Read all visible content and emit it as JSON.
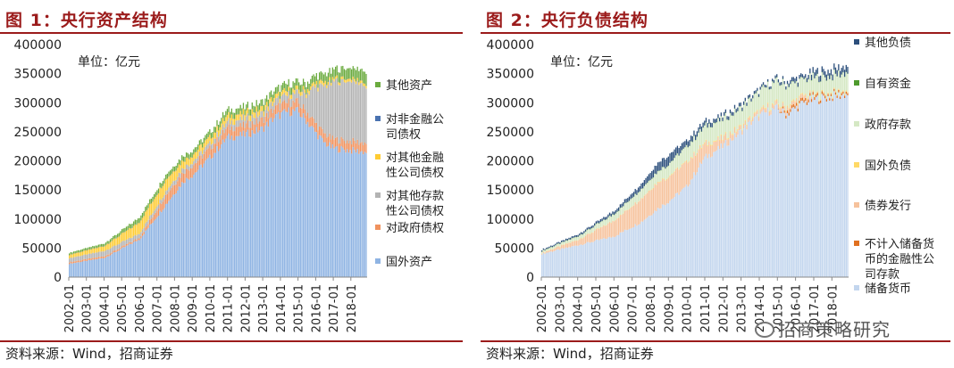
{
  "figures": [
    {
      "id": "fig1",
      "title": "图 1：央行资产结构",
      "source": "资料来源：Wind，招商证券"
    },
    {
      "id": "fig2",
      "title": "图 2：央行负债结构",
      "source": "资料来源：Wind，招商证券"
    }
  ],
  "watermark": "招商策略研究",
  "chart_data": [
    {
      "type": "area",
      "subtype": "stacked-bar-monthly",
      "title": "央行资产结构",
      "unit_label": "单位：亿元",
      "xlabel": "",
      "ylabel": "",
      "ylim": [
        0,
        400000
      ],
      "yticks": [
        0,
        50000,
        100000,
        150000,
        200000,
        250000,
        300000,
        350000,
        400000
      ],
      "xticks": [
        "2002-01",
        "2003-01",
        "2004-01",
        "2005-01",
        "2006-01",
        "2007-01",
        "2008-01",
        "2009-01",
        "2010-01",
        "2011-01",
        "2012-01",
        "2013-01",
        "2014-01",
        "2015-01",
        "2016-01",
        "2017-01",
        "2018-01"
      ],
      "x_range_years": [
        2002,
        2018.92
      ],
      "grid": false,
      "legend_placement": "right",
      "x": [
        2002.0,
        2004.0,
        2006.0,
        2007.5,
        2008.5,
        2009.0,
        2010.0,
        2011.0,
        2012.0,
        2013.0,
        2013.7,
        2014.5,
        2015.0,
        2015.5,
        2016.0,
        2016.5,
        2017.0,
        2018.0,
        2018.9
      ],
      "series": [
        {
          "name": "国外资产",
          "color": "#8fb4e3",
          "values": [
            23000,
            33000,
            65000,
            125000,
            165000,
            175000,
            205000,
            240000,
            245000,
            255000,
            275000,
            285000,
            285000,
            270000,
            250000,
            232000,
            222000,
            218000,
            215000
          ]
        },
        {
          "name": "对政府债权",
          "color": "#f0925e",
          "values": [
            2800,
            3000,
            3000,
            16000,
            16000,
            16000,
            16000,
            16000,
            15500,
            15500,
            15500,
            15500,
            15500,
            15500,
            15500,
            15500,
            15500,
            15500,
            15500
          ]
        },
        {
          "name": "对其他存款性公司债权",
          "color": "#b3b3b3",
          "values": [
            7000,
            9000,
            7000,
            7000,
            8000,
            7000,
            8000,
            10000,
            12000,
            11000,
            12000,
            13000,
            15000,
            30000,
            62000,
            80000,
            97000,
            105000,
            98000
          ]
        },
        {
          "name": "对其他金融性公司债权",
          "color": "#ffcc33",
          "values": [
            6000,
            9000,
            20000,
            20000,
            13000,
            12000,
            11000,
            11000,
            10000,
            9000,
            8000,
            7500,
            7000,
            6500,
            6500,
            6500,
            5000,
            5000,
            5000
          ]
        },
        {
          "name": "对非金融公司债权",
          "color": "#4a72b0",
          "values": [
            70,
            70,
            70,
            70,
            70,
            70,
            70,
            70,
            70,
            70,
            70,
            70,
            70,
            70,
            70,
            70,
            70,
            70,
            70
          ]
        },
        {
          "name": "其他资产",
          "color": "#6bab3f",
          "values": [
            3000,
            4000,
            8000,
            8000,
            8000,
            8000,
            9000,
            10000,
            10000,
            11000,
            11000,
            12000,
            12000,
            12000,
            13000,
            14000,
            16000,
            18000,
            20000
          ]
        }
      ]
    },
    {
      "type": "area",
      "subtype": "stacked-bar-monthly",
      "title": "央行负债结构",
      "unit_label": "单位：亿元",
      "xlabel": "",
      "ylabel": "",
      "ylim": [
        0,
        400000
      ],
      "yticks": [
        0,
        50000,
        100000,
        150000,
        200000,
        250000,
        300000,
        350000,
        400000
      ],
      "xticks": [
        "2002-01",
        "2003-01",
        "2004-01",
        "2005-01",
        "2006-01",
        "2007-01",
        "2008-01",
        "2009-01",
        "2010-01",
        "2011-01",
        "2012-01",
        "2013-01",
        "2014-01",
        "2015-01",
        "2016-01",
        "2017-01",
        "2018-01"
      ],
      "x_range_years": [
        2002,
        2018.92
      ],
      "grid": false,
      "legend_placement": "right",
      "x": [
        2002.0,
        2004.0,
        2006.0,
        2007.5,
        2008.5,
        2009.0,
        2010.0,
        2011.0,
        2012.0,
        2013.0,
        2013.7,
        2014.5,
        2015.0,
        2015.5,
        2016.0,
        2016.5,
        2017.0,
        2018.0,
        2018.9
      ],
      "series": [
        {
          "name": "储备货币",
          "color": "#c3d6ee",
          "values": [
            40000,
            55000,
            70000,
            95000,
            120000,
            130000,
            155000,
            205000,
            225000,
            250000,
            270000,
            285000,
            290000,
            280000,
            290000,
            300000,
            305000,
            310000,
            315000
          ]
        },
        {
          "name": "不计入储备货币的金融性公司存款",
          "color": "#e07020",
          "values": [
            0,
            0,
            0,
            0,
            0,
            0,
            0,
            0,
            0,
            0,
            0,
            0,
            0,
            5000,
            5000,
            5000,
            5000,
            4000,
            4000
          ]
        },
        {
          "name": "债券发行",
          "color": "#f6c29c",
          "values": [
            1500,
            9000,
            27000,
            40000,
            45000,
            42000,
            42000,
            23000,
            13000,
            7000,
            6000,
            6500,
            6500,
            6500,
            6500,
            6500,
            1000,
            500,
            500
          ]
        },
        {
          "name": "国外负债",
          "color": "#ffd966",
          "values": [
            500,
            500,
            500,
            500,
            1000,
            1000,
            1000,
            1500,
            1500,
            1500,
            1500,
            1500,
            1500,
            1500,
            1500,
            1500,
            1500,
            1500,
            1500
          ]
        },
        {
          "name": "政府存款",
          "color": "#d5e8c4",
          "values": [
            3000,
            6000,
            11000,
            16000,
            19000,
            21000,
            26000,
            29000,
            32000,
            32000,
            32000,
            36000,
            38000,
            38000,
            30000,
            27000,
            30000,
            30000,
            31000
          ]
        },
        {
          "name": "自有资金",
          "color": "#4e9a2d",
          "values": [
            200,
            200,
            200,
            200,
            200,
            200,
            200,
            200,
            200,
            200,
            200,
            200,
            200,
            200,
            200,
            200,
            200,
            200,
            200
          ]
        },
        {
          "name": "其他负债",
          "color": "#2c4f7c",
          "values": [
            2000,
            3000,
            5000,
            9000,
            15000,
            16000,
            10000,
            8000,
            6000,
            6000,
            5000,
            4000,
            5000,
            5000,
            8000,
            5000,
            10000,
            10000,
            12000
          ]
        }
      ]
    }
  ]
}
